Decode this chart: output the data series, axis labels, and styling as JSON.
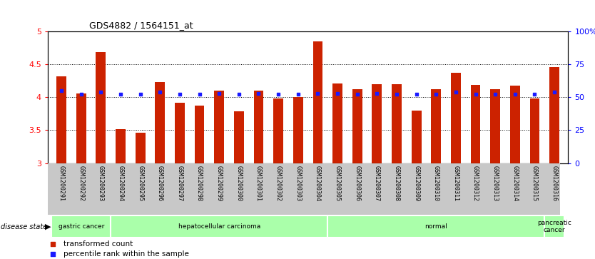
{
  "title": "GDS4882 / 1564151_at",
  "samples": [
    "GSM1200291",
    "GSM1200292",
    "GSM1200293",
    "GSM1200294",
    "GSM1200295",
    "GSM1200296",
    "GSM1200297",
    "GSM1200298",
    "GSM1200299",
    "GSM1200300",
    "GSM1200301",
    "GSM1200302",
    "GSM1200303",
    "GSM1200304",
    "GSM1200305",
    "GSM1200306",
    "GSM1200307",
    "GSM1200308",
    "GSM1200309",
    "GSM1200310",
    "GSM1200311",
    "GSM1200312",
    "GSM1200313",
    "GSM1200314",
    "GSM1200315",
    "GSM1200316"
  ],
  "transformed_count": [
    4.32,
    4.05,
    4.68,
    3.52,
    3.46,
    4.23,
    3.91,
    3.87,
    4.1,
    3.78,
    4.1,
    3.98,
    4.0,
    4.84,
    4.21,
    4.12,
    4.2,
    4.2,
    3.8,
    4.12,
    4.37,
    4.18,
    4.12,
    4.17,
    3.98,
    4.45
  ],
  "percentile_rank": [
    55,
    52,
    54,
    52,
    52,
    54,
    52,
    52,
    53,
    52,
    53,
    52,
    52,
    53,
    53,
    52,
    53,
    52,
    52,
    52,
    54,
    52,
    52,
    52,
    52,
    54
  ],
  "bar_base": 3.0,
  "ylim_left": [
    3.0,
    5.0
  ],
  "ylim_right": [
    0,
    100
  ],
  "yticks_left": [
    3.0,
    3.5,
    4.0,
    4.5,
    5.0
  ],
  "ytick_labels_left": [
    "3",
    "3.5",
    "4",
    "4.5",
    "5"
  ],
  "yticks_right": [
    0,
    25,
    50,
    75,
    100
  ],
  "ytick_labels_right": [
    "0",
    "25",
    "50",
    "75",
    "100%"
  ],
  "bar_color": "#cc2200",
  "percentile_color": "#1a1aff",
  "groups": [
    {
      "label": "gastric cancer",
      "start": 0,
      "end": 3
    },
    {
      "label": "hepatocellular carcinoma",
      "start": 3,
      "end": 14
    },
    {
      "label": "normal",
      "start": 14,
      "end": 25
    },
    {
      "label": "pancreatic\ncancer",
      "start": 25,
      "end": 26
    }
  ],
  "group_color": "#aaffaa",
  "tick_bg_color": "#c8c8c8",
  "bg_color": "#ffffff"
}
